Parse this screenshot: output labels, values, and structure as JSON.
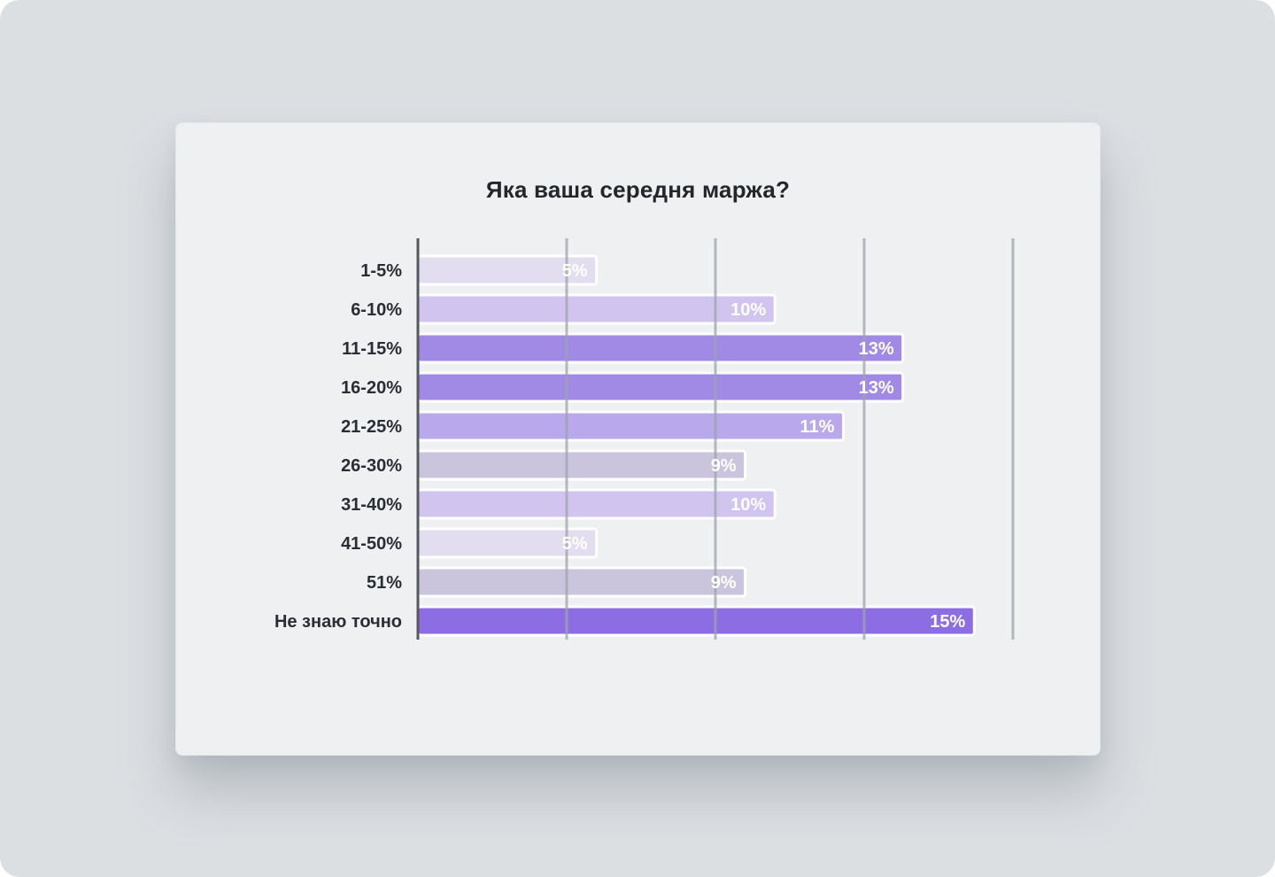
{
  "chart_data": {
    "type": "bar",
    "orientation": "horizontal",
    "title": "Яка ваша середня маржа?",
    "xlabel": "",
    "ylabel": "",
    "xlim": [
      0,
      20
    ],
    "gridlines": [
      0,
      5,
      10,
      15,
      20
    ],
    "grid": true,
    "categories": [
      "1-5%",
      "6-10%",
      "11-15%",
      "16-20%",
      "21-25%",
      "26-30%",
      "31-40%",
      "41-50%",
      "51%",
      "Не знаю точно"
    ],
    "values": [
      6,
      12,
      16.3,
      16.3,
      14.3,
      11,
      12,
      6,
      11,
      18.7
    ],
    "value_labels": [
      "5%",
      "10%",
      "13%",
      "13%",
      "11%",
      "9%",
      "10%",
      "5%",
      "9%",
      "15%"
    ],
    "colors": [
      "#e2def0",
      "#d1c5f0",
      "#a08ae6",
      "#a08ae6",
      "#b9a9ec",
      "#cac4dc",
      "#d1c5f0",
      "#e2def0",
      "#cac4dc",
      "#8c6de3"
    ]
  }
}
